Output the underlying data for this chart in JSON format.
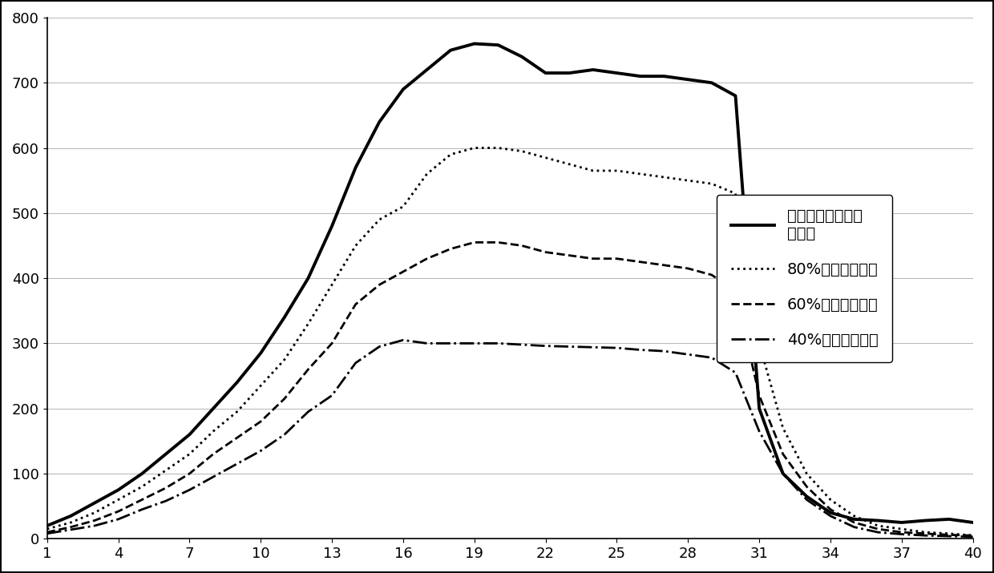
{
  "x": [
    1,
    2,
    3,
    4,
    5,
    6,
    7,
    8,
    9,
    10,
    11,
    12,
    13,
    14,
    15,
    16,
    17,
    18,
    19,
    20,
    21,
    22,
    23,
    24,
    25,
    26,
    27,
    28,
    29,
    30,
    31,
    32,
    33,
    34,
    35,
    36,
    37,
    38,
    39,
    40
  ],
  "series1": [
    20,
    35,
    55,
    75,
    100,
    130,
    160,
    200,
    240,
    285,
    340,
    400,
    480,
    570,
    640,
    690,
    720,
    750,
    760,
    758,
    740,
    715,
    715,
    720,
    715,
    710,
    710,
    705,
    700,
    680,
    200,
    100,
    65,
    40,
    30,
    28,
    25,
    28,
    30,
    25
  ],
  "series2": [
    15,
    25,
    40,
    60,
    80,
    105,
    130,
    165,
    195,
    235,
    275,
    330,
    390,
    450,
    490,
    510,
    560,
    590,
    600,
    600,
    595,
    585,
    575,
    565,
    565,
    560,
    555,
    550,
    545,
    530,
    300,
    170,
    100,
    60,
    35,
    20,
    15,
    10,
    8,
    5
  ],
  "series3": [
    10,
    18,
    28,
    42,
    60,
    78,
    100,
    130,
    155,
    180,
    215,
    260,
    300,
    360,
    390,
    410,
    430,
    445,
    455,
    455,
    450,
    440,
    435,
    430,
    430,
    425,
    420,
    415,
    405,
    380,
    220,
    130,
    80,
    45,
    25,
    15,
    10,
    8,
    6,
    5
  ],
  "series4": [
    8,
    14,
    20,
    30,
    45,
    58,
    75,
    95,
    115,
    135,
    160,
    195,
    220,
    270,
    295,
    305,
    300,
    300,
    300,
    300,
    298,
    296,
    295,
    294,
    293,
    290,
    288,
    283,
    278,
    255,
    165,
    100,
    60,
    35,
    18,
    10,
    7,
    5,
    4,
    3
  ],
  "ylim": [
    0,
    800
  ],
  "yticks": [
    0,
    100,
    200,
    300,
    400,
    500,
    600,
    700,
    800
  ],
  "xticks": [
    1,
    4,
    7,
    10,
    13,
    16,
    19,
    22,
    25,
    28,
    31,
    34,
    37,
    40
  ],
  "legend1": "电网电压自适应跟\n踪波形",
  "legend2": "80%跌落判据标准",
  "legend3": "60%跌落判据标准",
  "legend4": "40%跌落判据标准",
  "bg_color": "#ffffff",
  "line_color": "#000000"
}
